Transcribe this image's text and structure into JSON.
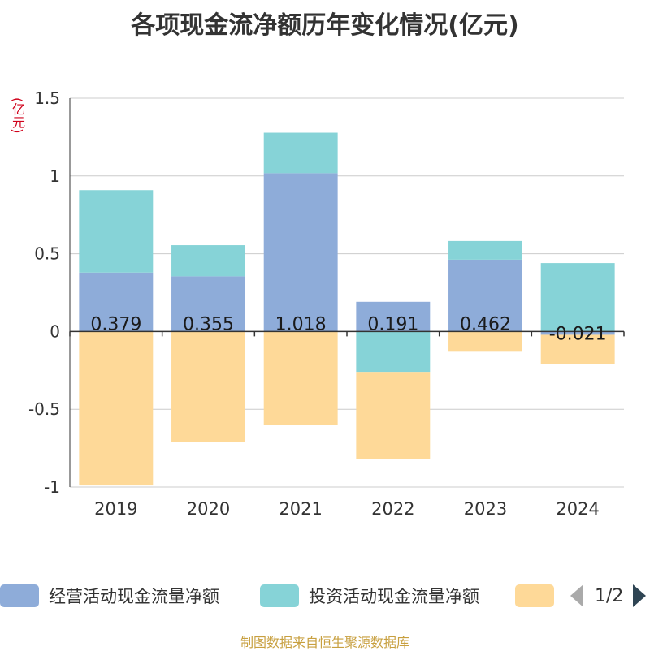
{
  "chart_data": {
    "type": "bar",
    "stacked": true,
    "title": "各项现金流净额历年变化情况(亿元)",
    "ylabel": "(亿元)",
    "categories": [
      "2019",
      "2020",
      "2021",
      "2022",
      "2023",
      "2024"
    ],
    "ylim": [
      -1,
      1.5
    ],
    "yticks": [
      -1,
      -0.5,
      0,
      0.5,
      1,
      1.5
    ],
    "ytick_labels": [
      "-1",
      "-0.5",
      "0",
      "0.5",
      "1",
      "1.5"
    ],
    "series": [
      {
        "name": "经营活动现金流量净额",
        "color": "#8eacd9",
        "values": [
          0.379,
          0.355,
          1.018,
          0.191,
          0.462,
          -0.021
        ],
        "labels": [
          "0.379",
          "0.355",
          "1.018",
          "0.191",
          "0.462",
          "-0.021"
        ]
      },
      {
        "name": "投资活动现金流量净额",
        "color": "#86d3d7",
        "values": [
          0.53,
          0.2,
          0.26,
          -0.26,
          0.12,
          0.44
        ]
      },
      {
        "name": "",
        "color": "#fed998",
        "values": [
          -0.99,
          -0.71,
          -0.6,
          -0.56,
          -0.13,
          -0.19
        ]
      }
    ],
    "legend": {
      "position": "bottom",
      "page": "1/2"
    }
  },
  "source": "制图数据来自恒生聚源数据库"
}
